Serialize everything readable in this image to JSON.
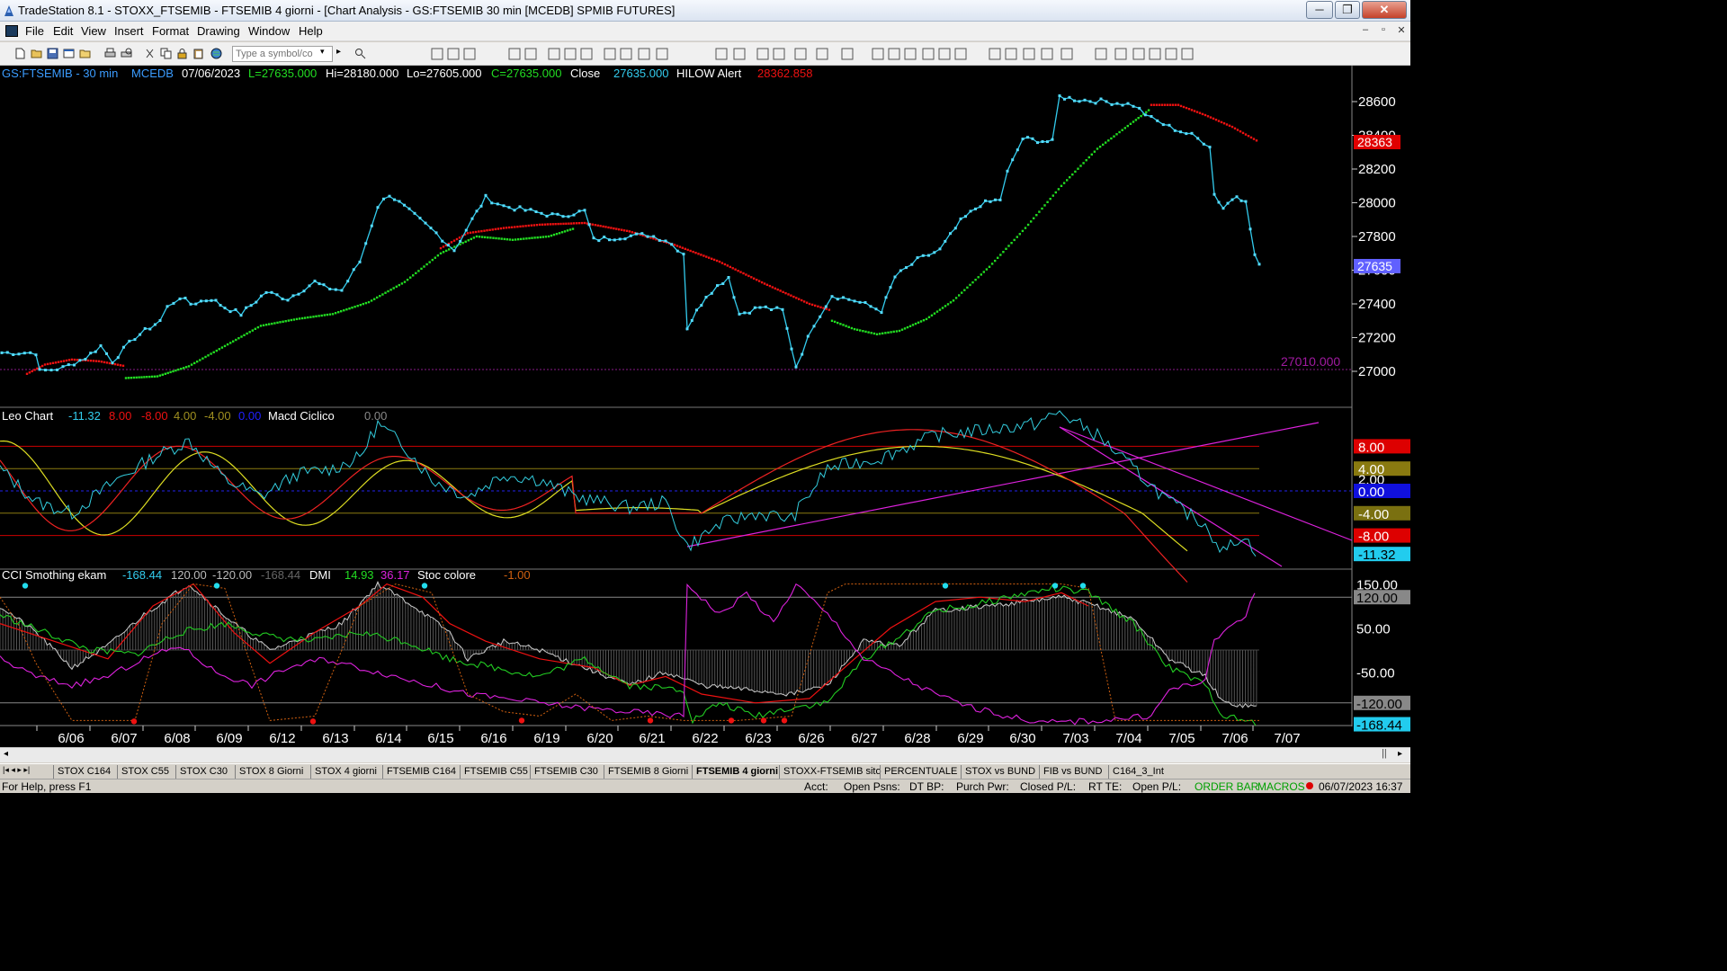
{
  "window": {
    "title": "TradeStation 8.1 - STOXX_FTSEMIB - FTSEMIB  4 giorni - [Chart Analysis - GS:FTSEMIB  30 min  [MCEDB] SPMIB FUTURES]",
    "controls": [
      "─",
      "❐",
      "✕"
    ]
  },
  "menu": {
    "items": [
      "File",
      "Edit",
      "View",
      "Insert",
      "Format",
      "Drawing",
      "Window",
      "Help"
    ],
    "mdi_controls": [
      "–",
      "▫",
      "✕"
    ]
  },
  "toolbar": {
    "symbol_placeholder": "Type a symbol/co",
    "symbol_arrow": "▾",
    "go_arrow": "▸"
  },
  "chart": {
    "header": {
      "symbol": "GS:FTSEMIB - 30 min",
      "exchange": "MCEDB",
      "date": "07/06/2023",
      "last": "L=27635.000",
      "high": "Hi=28180.000",
      "low": "Lo=27605.000",
      "close_eq": "C=27635.000",
      "close_label": "Close",
      "close_value": "27635.000",
      "indicator": "HILOW Alert",
      "indicator_value": "28362.858"
    },
    "reference_line_label": "27010.000",
    "price_axis": [
      "28600",
      "28400",
      "28200",
      "28000",
      "27800",
      "27600",
      "27400",
      "27200",
      "27000"
    ],
    "price_markers": {
      "hilow": "28363",
      "close": "27635"
    },
    "panel2": {
      "name": "Leo Chart",
      "values": [
        "-11.32",
        "8.00",
        "-8.00",
        "4.00",
        "-4.00",
        "0.00"
      ],
      "name2": "Macd Ciclico",
      "value2": "0.00",
      "axis_labels": [
        "8.00",
        "4.00",
        "2.00",
        "0.00",
        "-4.00",
        "-8.00",
        "-11.32"
      ]
    },
    "panel3": {
      "name": "CCI Smothing ekam",
      "values": [
        "-168.44",
        "120.00",
        "-120.00",
        "-168.44"
      ],
      "name2": "DMI",
      "dmi_values": [
        "14.93",
        "36.17"
      ],
      "name3": "Stoc colore",
      "value3": "-1.00",
      "axis_labels": [
        "150.00",
        "120.00",
        "50.00",
        "-50.00",
        "-120.00",
        "-168.44"
      ]
    },
    "date_axis": [
      "6/06",
      "6/07",
      "6/08",
      "6/09",
      "6/12",
      "6/13",
      "6/14",
      "6/15",
      "6/16",
      "6/19",
      "6/20",
      "6/21",
      "6/22",
      "6/23",
      "6/26",
      "6/27",
      "6/28",
      "6/29",
      "6/30",
      "7/03",
      "7/04",
      "7/05",
      "7/06",
      "7/07"
    ],
    "chart_data": {
      "type": "line",
      "title": "GS:FTSEMIB - 30 min",
      "x_label": "",
      "y_label": "",
      "x_categories": [
        "6/06",
        "6/07",
        "6/08",
        "6/09",
        "6/12",
        "6/13",
        "6/14",
        "6/15",
        "6/16",
        "6/19",
        "6/20",
        "6/21",
        "6/22",
        "6/23",
        "6/26",
        "6/27",
        "6/28",
        "6/29",
        "6/30",
        "7/03",
        "7/04",
        "7/05",
        "7/06",
        "7/07"
      ],
      "y_range": [
        26950,
        28650
      ],
      "price_series_approx": [
        {
          "date": "6/06",
          "close": 27050
        },
        {
          "date": "6/07",
          "close": 27150
        },
        {
          "date": "6/08",
          "close": 27420
        },
        {
          "date": "6/09",
          "close": 27350
        },
        {
          "date": "6/12",
          "close": 27420
        },
        {
          "date": "6/13",
          "close": 27550
        },
        {
          "date": "6/14",
          "close": 28000
        },
        {
          "date": "6/15",
          "close": 27750
        },
        {
          "date": "6/16",
          "close": 27980
        },
        {
          "date": "6/19",
          "close": 27950
        },
        {
          "date": "6/20",
          "close": 27780
        },
        {
          "date": "6/21",
          "close": 27800
        },
        {
          "date": "6/22",
          "close": 27350
        },
        {
          "date": "6/23",
          "close": 27300
        },
        {
          "date": "6/26",
          "close": 27100
        },
        {
          "date": "6/27",
          "close": 27400
        },
        {
          "date": "6/28",
          "close": 27650
        },
        {
          "date": "6/29",
          "close": 27950
        },
        {
          "date": "6/30",
          "close": 28350
        },
        {
          "date": "7/03",
          "close": 28600
        },
        {
          "date": "7/04",
          "close": 28550
        },
        {
          "date": "7/05",
          "close": 28400
        },
        {
          "date": "7/06",
          "close": 27635
        }
      ],
      "reference_level": 27010,
      "hilow_level": 28362.858
    }
  },
  "tabs": [
    "STOX C164",
    "STOX C55",
    "STOX  C30",
    "STOX  8 Giorni",
    "STOX 4 giorni",
    "FTSEMIB C164",
    "FTSEMIB C55",
    "FTSEMIB C30",
    "FTSEMIB  8 Giorni",
    "FTSEMIB  4 giorni",
    "STOXX-FTSEMIB sito",
    "PERCENTUALE",
    "STOX vs BUND",
    "FIB vs BUND",
    "C164_3_Int"
  ],
  "status": {
    "help": "For Help, press F1",
    "acct": "Acct:",
    "open_psns": "Open Psns:",
    "dt_bp": "DT BP:",
    "purch_pwr": "Purch Pwr:",
    "closed_pl": "Closed P/L:",
    "rt_te": "RT TE:",
    "open_pl": "Open P/L:",
    "order_bar": "ORDER BAR",
    "macros": "MACROS",
    "datetime": "06/07/2023 16:37"
  },
  "colors": {
    "price": "#33ccee",
    "hilow_up": "#22dd22",
    "hilow_down": "#ee1111",
    "axis_bg": "#000000"
  }
}
